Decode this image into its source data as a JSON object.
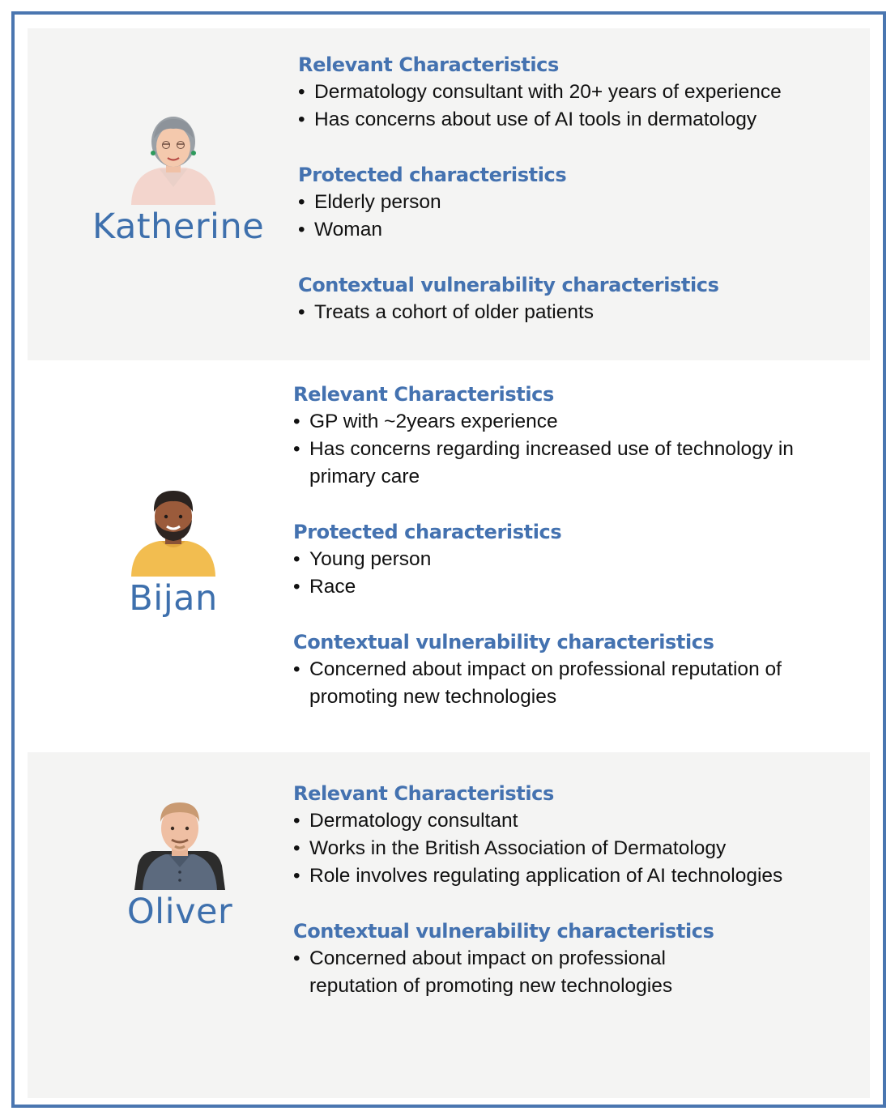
{
  "personas": [
    {
      "name": "Katherine",
      "avatar_icon": "elderly-woman-avatar-icon",
      "sections": [
        {
          "title": "Relevant Characteristics",
          "items": [
            "Dermatology consultant with 20+ years of experience",
            "Has concerns about use of AI tools in dermatology"
          ]
        },
        {
          "title": "Protected  characteristics",
          "items": [
            "Elderly person",
            "Woman"
          ]
        },
        {
          "title": "Contextual vulnerability characteristics",
          "items": [
            "Treats a cohort of older patients"
          ]
        }
      ]
    },
    {
      "name": "Bijan",
      "avatar_icon": "young-man-avatar-icon",
      "sections": [
        {
          "title": "Relevant Characteristics",
          "items": [
            "GP with ~2years experience",
            "Has concerns regarding increased use of technology in primary care"
          ]
        },
        {
          "title": "Protected  characteristics",
          "items": [
            "Young person",
            "Race"
          ]
        },
        {
          "title": "Contextual vulnerability characteristics",
          "items": [
            "Concerned about impact on professional reputation of promoting new technologies"
          ]
        }
      ]
    },
    {
      "name": "Oliver",
      "avatar_icon": "man-avatar-icon",
      "sections": [
        {
          "title": "Relevant Characteristics",
          "items": [
            "Dermatology consultant",
            "Works in the British Association of Dermatology",
            "Role involves regulating application of AI technologies"
          ]
        },
        {
          "title": "Contextual vulnerability characteristics",
          "items": [
            "Concerned about impact on professional reputation of promoting new technologies"
          ]
        }
      ]
    }
  ],
  "colors": {
    "frame": "#4a76b0",
    "heading": "#4472b0",
    "panel_shade": "#f4f4f3"
  }
}
